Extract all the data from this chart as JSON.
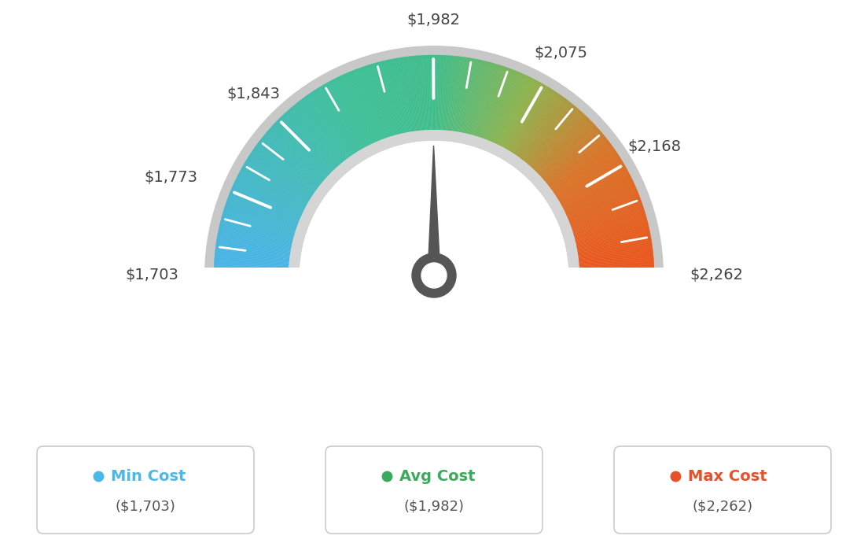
{
  "min_val": 1703,
  "max_val": 2262,
  "avg_val": 1982,
  "label_values": [
    1703,
    1773,
    1843,
    1982,
    2075,
    2168,
    2262
  ],
  "legend": [
    {
      "label": "Min Cost",
      "sublabel": "($1,703)",
      "color": "#4ab8e8"
    },
    {
      "label": "Avg Cost",
      "sublabel": "($1,982)",
      "color": "#3aaa5c"
    },
    {
      "label": "Max Cost",
      "sublabel": "($2,262)",
      "color": "#e8502a"
    }
  ],
  "background_color": "#ffffff",
  "color_stops": [
    [
      0.0,
      [
        0.28,
        0.7,
        0.92
      ]
    ],
    [
      0.35,
      [
        0.24,
        0.75,
        0.6
      ]
    ],
    [
      0.5,
      [
        0.24,
        0.74,
        0.54
      ]
    ],
    [
      0.65,
      [
        0.55,
        0.7,
        0.3
      ]
    ],
    [
      0.8,
      [
        0.85,
        0.45,
        0.15
      ]
    ],
    [
      1.0,
      [
        0.92,
        0.32,
        0.1
      ]
    ]
  ],
  "needle_color": "#555555",
  "outer_ring_color": "#c8c8c8",
  "inner_ring_color": "#d5d5d5"
}
